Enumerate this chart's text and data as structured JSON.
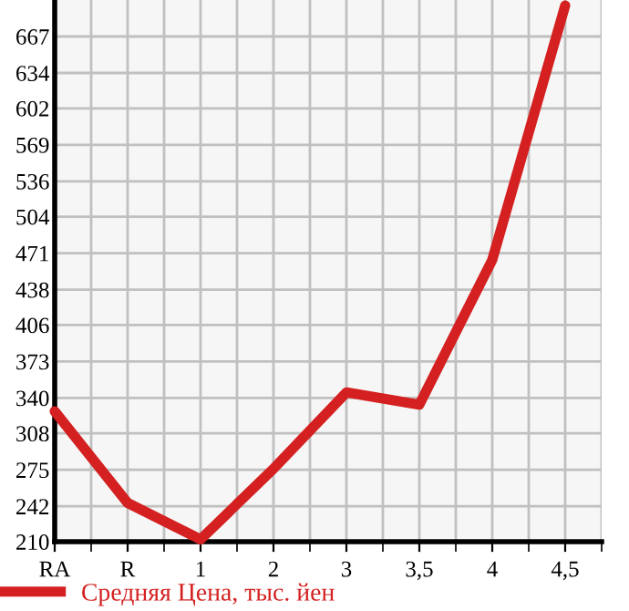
{
  "chart_data": {
    "type": "line",
    "categories": [
      "RA",
      "R",
      "1",
      "2",
      "3",
      "3,5",
      "4",
      "4,5"
    ],
    "series": [
      {
        "name": "Средняя Цена, тыс. йен",
        "color": "#d42020",
        "values": [
          328,
          245,
          212,
          276,
          345,
          334,
          465,
          695
        ]
      }
    ],
    "ylim": [
      210,
      700
    ],
    "yticks": [
      210,
      242,
      275,
      308,
      340,
      373,
      406,
      438,
      471,
      504,
      536,
      569,
      602,
      634,
      667
    ],
    "grid": true,
    "legend": "bottom left",
    "marker": "none",
    "line_style": "solid"
  }
}
